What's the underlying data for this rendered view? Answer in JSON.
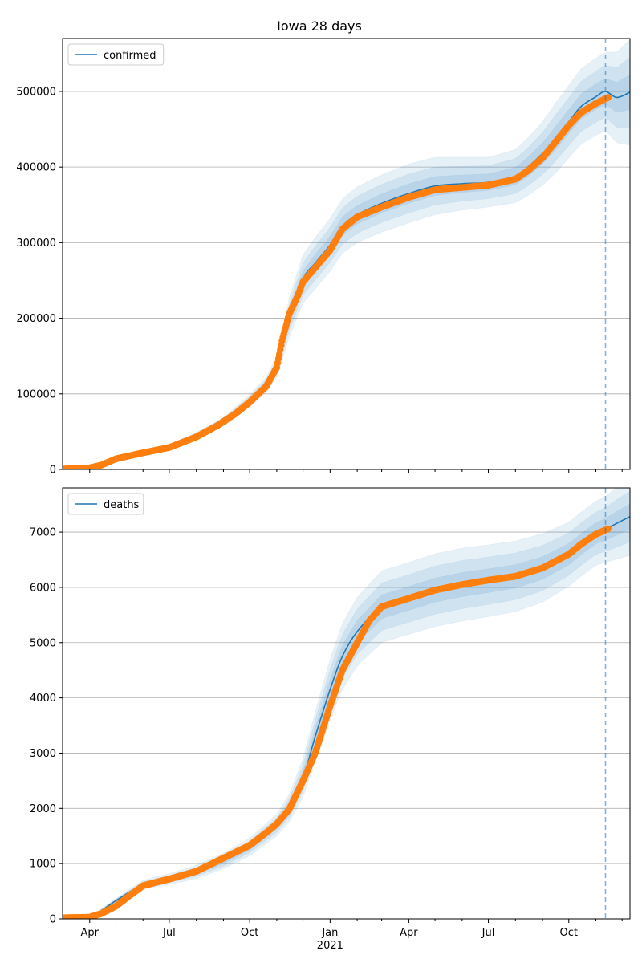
{
  "chart_data": {
    "type": "line",
    "title": "Iowa 28 days",
    "x_axis": {
      "ticks": [
        {
          "date": "2020-04-01",
          "label": "Apr"
        },
        {
          "date": "2020-07-01",
          "label": "Jul"
        },
        {
          "date": "2020-10-01",
          "label": "Oct"
        },
        {
          "date": "2021-01-01",
          "label": "Jan"
        },
        {
          "date": "2021-04-01",
          "label": "Apr"
        },
        {
          "date": "2021-07-01",
          "label": "Jul"
        },
        {
          "date": "2021-10-01",
          "label": "Oct"
        }
      ],
      "year_label": "2021",
      "range": [
        "2020-03-01",
        "2021-12-10"
      ]
    },
    "forecast_start": "2021-11-12",
    "colors": {
      "model": "#1f77b4",
      "observed": "#ff7f0e",
      "band": "#1f77b4",
      "grid": "#b0b0b0"
    },
    "panels": [
      {
        "id": "confirmed",
        "legend": "confirmed",
        "legend_position": "top-left",
        "grid": "y",
        "ylim": [
          0,
          570000
        ],
        "yticks": [
          0,
          100000,
          200000,
          300000,
          400000,
          500000
        ],
        "series": [
          {
            "name": "confirmed",
            "kind": "model",
            "x": [
              "2020-03-01",
              "2020-04-01",
              "2020-05-01",
              "2020-06-01",
              "2020-07-01",
              "2020-08-01",
              "2020-09-01",
              "2020-10-01",
              "2020-10-20",
              "2020-11-01",
              "2020-11-15",
              "2020-12-01",
              "2020-12-15",
              "2021-01-01",
              "2021-01-15",
              "2021-02-01",
              "2021-03-01",
              "2021-04-01",
              "2021-05-01",
              "2021-06-01",
              "2021-07-01",
              "2021-08-01",
              "2021-08-15",
              "2021-09-01",
              "2021-09-15",
              "2021-10-01",
              "2021-10-15",
              "2021-11-01",
              "2021-11-12",
              "2021-11-25",
              "2021-12-10"
            ],
            "y": [
              0,
              2000,
              16000,
              24000,
              31000,
              45000,
              63000,
              91000,
              112000,
              136000,
              200000,
              252000,
              273000,
              297000,
              322000,
              337000,
              352000,
              365000,
              375000,
              378000,
              380000,
              388000,
              400000,
              418000,
              437000,
              460000,
              480000,
              493000,
              500000,
              492000,
              499000
            ],
            "band_widths": [
              0,
              0,
              500,
              1000,
              2000,
              4000,
              6000,
              8000,
              10000,
              14000,
              26000,
              32000,
              34000,
              35000,
              36000,
              37000,
              38000,
              39000,
              38000,
              35000,
              33000,
              35000,
              38000,
              42000,
              46000,
              48000,
              50000,
              51000,
              52000,
              60000,
              70000
            ]
          },
          {
            "name": "observed",
            "kind": "points",
            "x": [
              "2020-03-01",
              "2020-04-01",
              "2020-04-15",
              "2020-05-01",
              "2020-06-01",
              "2020-07-01",
              "2020-08-01",
              "2020-08-25",
              "2020-09-15",
              "2020-10-01",
              "2020-10-20",
              "2020-11-01",
              "2020-11-07",
              "2020-11-15",
              "2020-11-25",
              "2020-12-01",
              "2020-12-15",
              "2021-01-01",
              "2021-01-15",
              "2021-02-01",
              "2021-03-01",
              "2021-04-01",
              "2021-05-01",
              "2021-06-01",
              "2021-07-01",
              "2021-08-01",
              "2021-08-15",
              "2021-09-01",
              "2021-09-15",
              "2021-10-01",
              "2021-10-15",
              "2021-11-01",
              "2021-11-15"
            ],
            "y": [
              500,
              2000,
              6000,
              14000,
              22000,
              29000,
              43000,
              58000,
              74000,
              89000,
              110000,
              135000,
              170000,
              205000,
              230000,
              248000,
              267000,
              290000,
              318000,
              334000,
              347000,
              360000,
              370000,
              373000,
              376000,
              384000,
              395000,
              412000,
              432000,
              455000,
              472000,
              484000,
              492000
            ]
          }
        ]
      },
      {
        "id": "deaths",
        "legend": "deaths",
        "legend_position": "top-left",
        "grid": "y",
        "ylim": [
          0,
          7800
        ],
        "yticks": [
          0,
          1000,
          2000,
          3000,
          4000,
          5000,
          6000,
          7000
        ],
        "series": [
          {
            "name": "deaths",
            "kind": "model",
            "x": [
              "2020-03-01",
              "2020-04-01",
              "2020-05-01",
              "2020-06-01",
              "2020-07-01",
              "2020-08-01",
              "2020-09-01",
              "2020-10-01",
              "2020-11-01",
              "2020-11-15",
              "2020-12-01",
              "2020-12-15",
              "2021-01-01",
              "2021-01-15",
              "2021-02-01",
              "2021-03-01",
              "2021-04-01",
              "2021-05-01",
              "2021-06-01",
              "2021-07-01",
              "2021-08-01",
              "2021-09-01",
              "2021-10-01",
              "2021-10-15",
              "2021-11-01",
              "2021-11-12",
              "2021-11-25",
              "2021-12-10"
            ],
            "y": [
              0,
              30,
              330,
              620,
              720,
              850,
              1050,
              1300,
              1700,
              2000,
              2550,
              3300,
              4150,
              4750,
              5200,
              5650,
              5800,
              5950,
              6050,
              6120,
              6200,
              6350,
              6600,
              6780,
              6980,
              7050,
              7160,
              7280
            ],
            "band_widths": [
              0,
              0,
              40,
              80,
              100,
              120,
              140,
              160,
              200,
              250,
              350,
              450,
              550,
              600,
              620,
              650,
              650,
              660,
              660,
              650,
              640,
              620,
              580,
              580,
              580,
              600,
              650,
              700
            ]
          },
          {
            "name": "observed",
            "kind": "points",
            "x": [
              "2020-03-01",
              "2020-04-01",
              "2020-04-15",
              "2020-05-01",
              "2020-05-15",
              "2020-06-01",
              "2020-07-01",
              "2020-08-01",
              "2020-09-01",
              "2020-10-01",
              "2020-10-20",
              "2020-11-01",
              "2020-11-15",
              "2020-12-01",
              "2020-12-15",
              "2021-01-01",
              "2021-01-15",
              "2021-02-01",
              "2021-02-15",
              "2021-03-01",
              "2021-04-01",
              "2021-05-01",
              "2021-06-01",
              "2021-07-01",
              "2021-08-01",
              "2021-09-01",
              "2021-10-01",
              "2021-10-15",
              "2021-11-01",
              "2021-11-15"
            ],
            "y": [
              20,
              30,
              100,
              230,
              400,
              600,
              720,
              860,
              1100,
              1330,
              1560,
              1720,
              1980,
              2500,
              3000,
              3850,
              4500,
              5000,
              5400,
              5650,
              5800,
              5950,
              6050,
              6130,
              6200,
              6350,
              6600,
              6780,
              6960,
              7060
            ]
          }
        ]
      }
    ]
  }
}
